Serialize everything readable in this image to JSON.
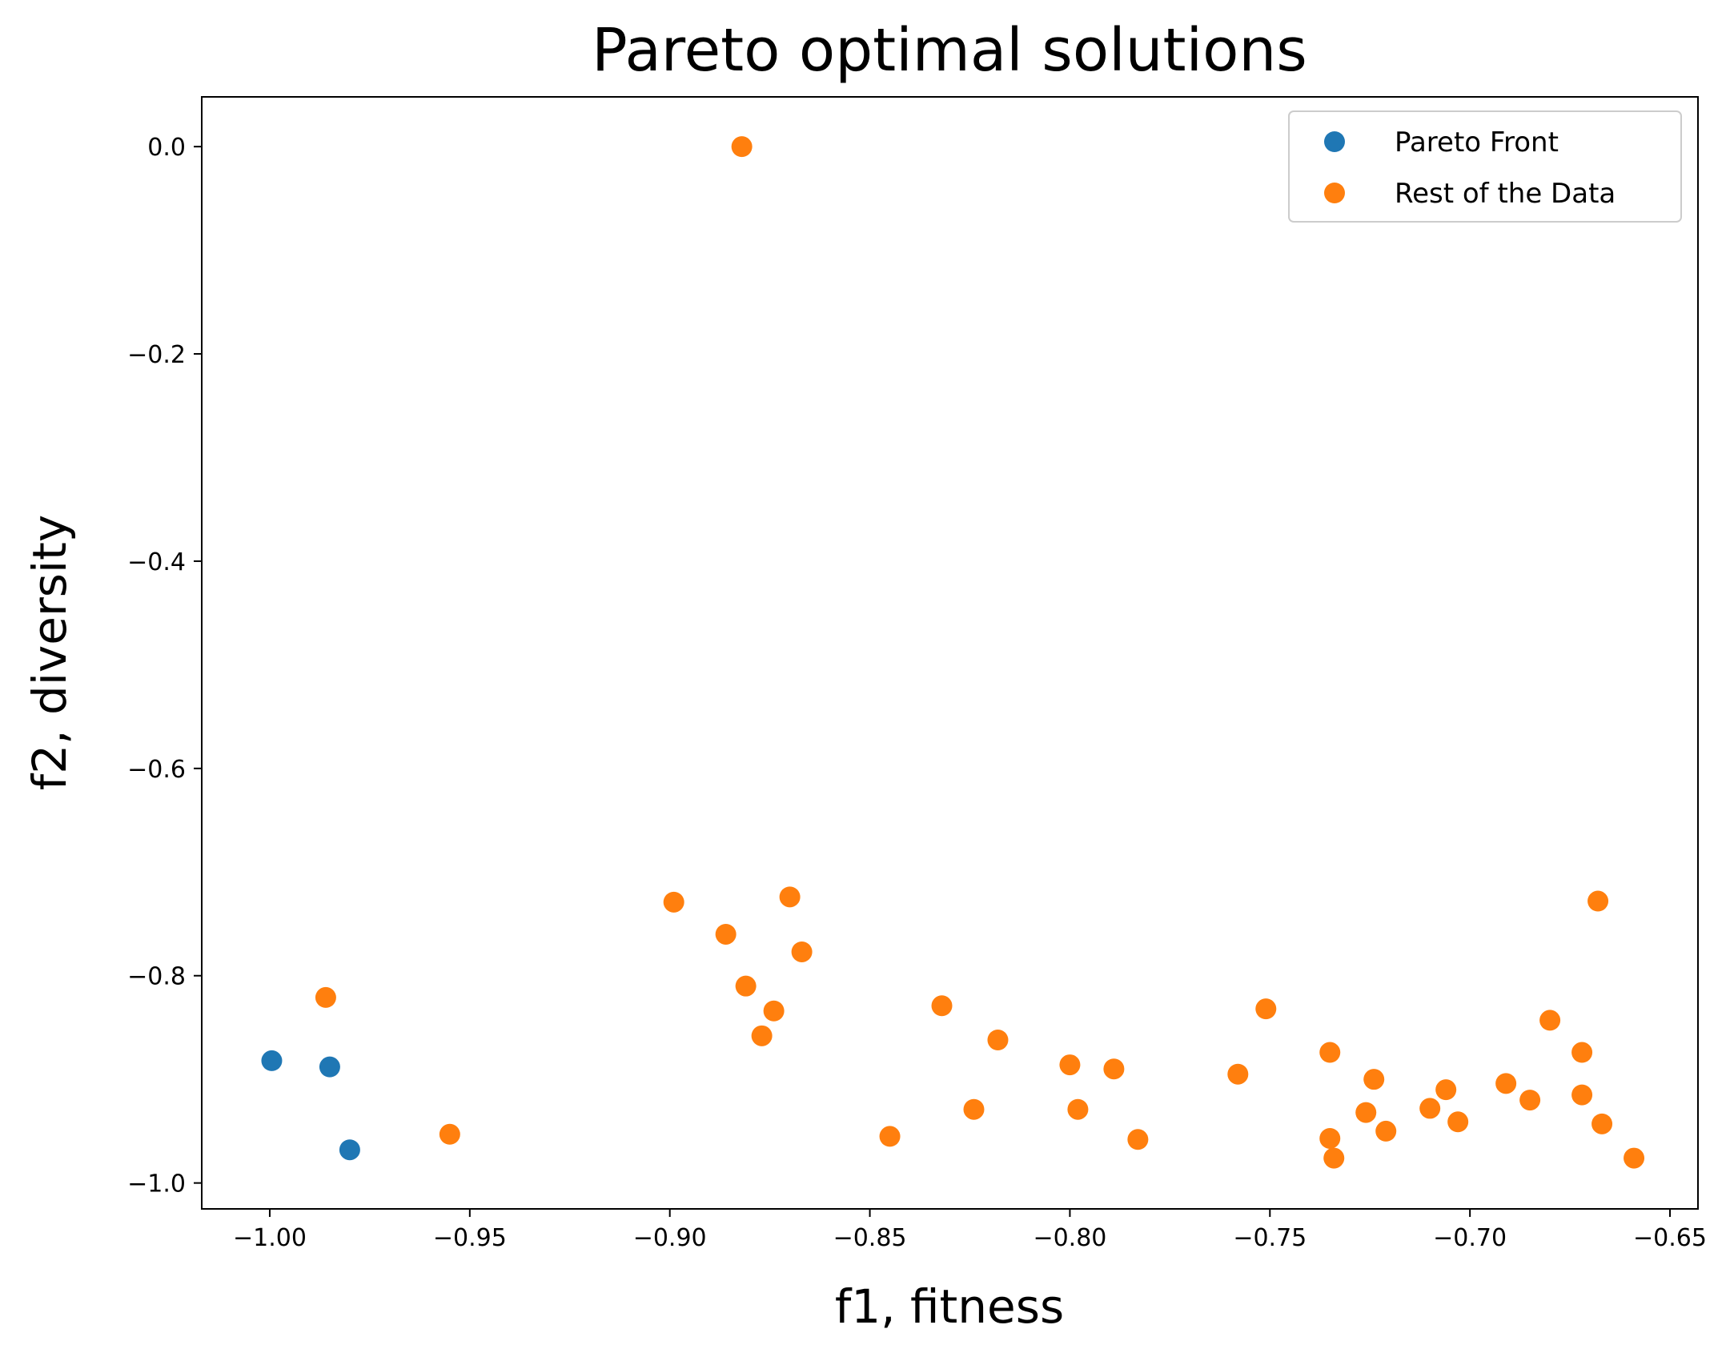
{
  "colors": {
    "pareto": "#1f77b4",
    "rest": "#ff7f0e"
  },
  "chart_data": {
    "type": "scatter",
    "title": "Pareto optimal solutions",
    "xlabel": "f1, fitness",
    "ylabel": "f2, diversity",
    "xlim": [
      -1.017,
      -0.643
    ],
    "ylim": [
      -1.025,
      0.048
    ],
    "xticks": [
      -1.0,
      -0.95,
      -0.9,
      -0.85,
      -0.8,
      -0.75,
      -0.7,
      -0.65
    ],
    "xtick_labels": [
      "−1.00",
      "−0.95",
      "−0.90",
      "−0.85",
      "−0.80",
      "−0.75",
      "−0.70",
      "−0.65"
    ],
    "yticks": [
      0.0,
      -0.2,
      -0.4,
      -0.6,
      -0.8,
      -1.0
    ],
    "ytick_labels": [
      "0.0",
      "−0.2",
      "−0.4",
      "−0.6",
      "−0.8",
      "−1.0"
    ],
    "grid": false,
    "legend_position": "top-right",
    "series": [
      {
        "name": "Pareto Front",
        "color": "#1f77b4",
        "points": [
          [
            -0.9995,
            -0.882
          ],
          [
            -0.985,
            -0.888
          ],
          [
            -0.98,
            -0.968
          ]
        ]
      },
      {
        "name": "Rest of the Data",
        "color": "#ff7f0e",
        "points": [
          [
            -0.882,
            0.0
          ],
          [
            -0.986,
            -0.821
          ],
          [
            -0.955,
            -0.953
          ],
          [
            -0.899,
            -0.729
          ],
          [
            -0.886,
            -0.76
          ],
          [
            -0.87,
            -0.724
          ],
          [
            -0.867,
            -0.777
          ],
          [
            -0.881,
            -0.81
          ],
          [
            -0.874,
            -0.834
          ],
          [
            -0.877,
            -0.858
          ],
          [
            -0.845,
            -0.955
          ],
          [
            -0.832,
            -0.829
          ],
          [
            -0.824,
            -0.929
          ],
          [
            -0.818,
            -0.862
          ],
          [
            -0.8,
            -0.886
          ],
          [
            -0.798,
            -0.929
          ],
          [
            -0.789,
            -0.89
          ],
          [
            -0.783,
            -0.958
          ],
          [
            -0.758,
            -0.895
          ],
          [
            -0.751,
            -0.832
          ],
          [
            -0.735,
            -0.874
          ],
          [
            -0.735,
            -0.957
          ],
          [
            -0.734,
            -0.976
          ],
          [
            -0.726,
            -0.932
          ],
          [
            -0.724,
            -0.9
          ],
          [
            -0.721,
            -0.95
          ],
          [
            -0.71,
            -0.928
          ],
          [
            -0.706,
            -0.91
          ],
          [
            -0.703,
            -0.941
          ],
          [
            -0.691,
            -0.904
          ],
          [
            -0.685,
            -0.92
          ],
          [
            -0.68,
            -0.843
          ],
          [
            -0.672,
            -0.874
          ],
          [
            -0.672,
            -0.915
          ],
          [
            -0.668,
            -0.728
          ],
          [
            -0.667,
            -0.943
          ],
          [
            -0.659,
            -0.976
          ]
        ]
      }
    ]
  }
}
